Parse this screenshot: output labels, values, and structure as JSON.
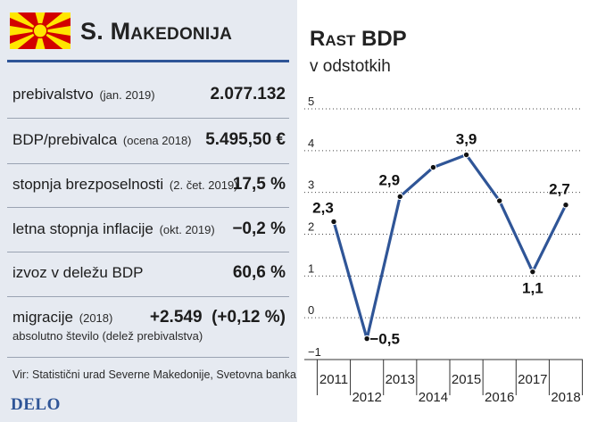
{
  "country": {
    "name": "S. Makedonija",
    "flag_colors": {
      "field": "#d20000",
      "sun": "#ffe600"
    }
  },
  "stats": [
    {
      "label": "prebivalstvo",
      "note": "(jan. 2019)",
      "value": "2.077.132"
    },
    {
      "label": "BDP/prebivalca",
      "note": "(ocena 2018)",
      "value": "5.495,50 €"
    },
    {
      "label": "stopnja brezposelnosti",
      "note": "(2. čet. 2019)",
      "value": "17,5 %"
    },
    {
      "label": "letna stopnja inflacije",
      "note": "(okt. 2019)",
      "value": "−0,2 %"
    },
    {
      "label": "izvoz v deležu BDP",
      "note": "",
      "value": "60,6 %"
    },
    {
      "label": "migracije",
      "note": "(2018)",
      "value": "+2.549  (+0,12 %)",
      "sub": "absolutno število (delež prebivalstva)"
    }
  ],
  "source": "Vir: Statistični urad Severne Makedonije, Svetovna banka",
  "brand": "DELO",
  "colors": {
    "accent": "#2f5597",
    "panel": "#e6eaf1"
  },
  "chart_data": {
    "type": "line",
    "title": "Rast BDP",
    "subtitle": "v odstotkih",
    "x": [
      2011,
      2012,
      2013,
      2014,
      2015,
      2016,
      2017,
      2018
    ],
    "series": [
      {
        "values": [
          2.3,
          -0.5,
          2.9,
          3.6,
          3.9,
          2.8,
          1.1,
          2.7
        ]
      }
    ],
    "data_labels": [
      "2,3",
      "−0,5",
      "2,9",
      "",
      "3,9",
      "",
      "1,1",
      "2,7"
    ],
    "x_tick_labels": [
      "2011",
      "2012",
      "2013",
      "2014",
      "2015",
      "2016",
      "2017",
      "2018"
    ],
    "y_ticks": [
      -1,
      0,
      1,
      2,
      3,
      4,
      5
    ],
    "y_tick_labels": [
      "−1",
      "0",
      "1",
      "2",
      "3",
      "4",
      "5"
    ],
    "ylim": [
      -1,
      5
    ],
    "grid": "horizontal-dotted",
    "line_color": "#2f5597"
  }
}
